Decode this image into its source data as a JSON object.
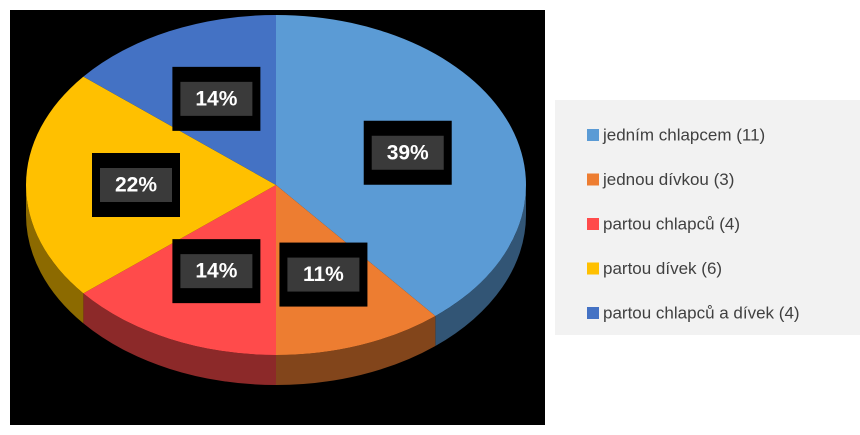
{
  "chart_data": {
    "type": "pie",
    "categories": [
      "jedním chlapcem (11)",
      "jednou dívkou (3)",
      "partou chlapců (4)",
      "partou dívek (6)",
      "partou chlapců a dívek (4)"
    ],
    "values": [
      39,
      11,
      14,
      22,
      14
    ],
    "value_labels": [
      "39%",
      "11%",
      "14%",
      "22%",
      "14%"
    ],
    "colors": [
      "#5b9bd5",
      "#ed7d31",
      "#ff4b4b",
      "#ffc000",
      "#4472c4"
    ],
    "legend": "right"
  }
}
